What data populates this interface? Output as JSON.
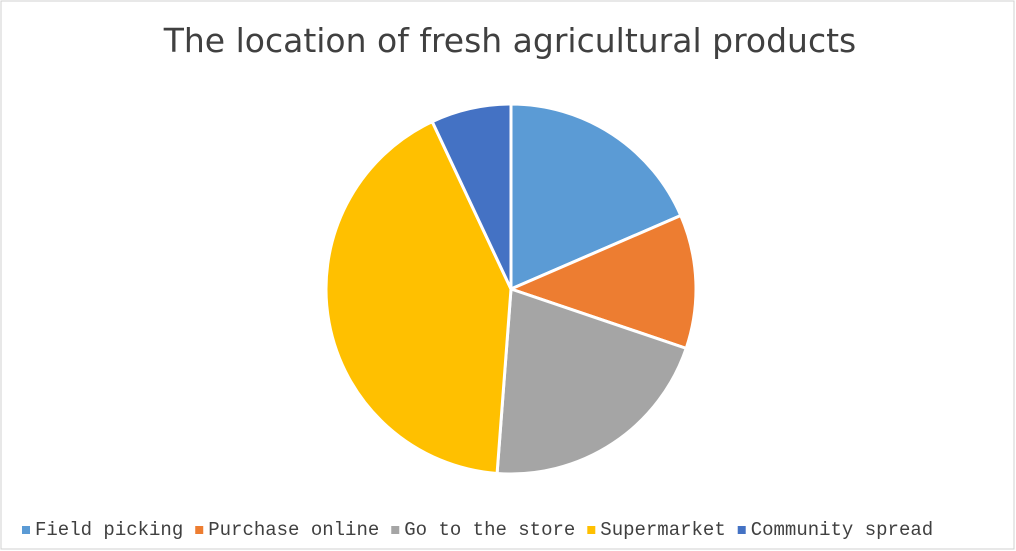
{
  "chart_data": {
    "type": "pie",
    "title": "The location of fresh agricultural products",
    "categories": [
      "Field picking",
      "Purchase online",
      "Go to the store",
      "Supermarket",
      "Community spread"
    ],
    "values": [
      18.5,
      11.7,
      21,
      41.8,
      7
    ],
    "colors": [
      "#5b9bd5",
      "#ed7d31",
      "#a5a5a5",
      "#ffc000",
      "#4472c4"
    ],
    "legend": "bottom"
  }
}
